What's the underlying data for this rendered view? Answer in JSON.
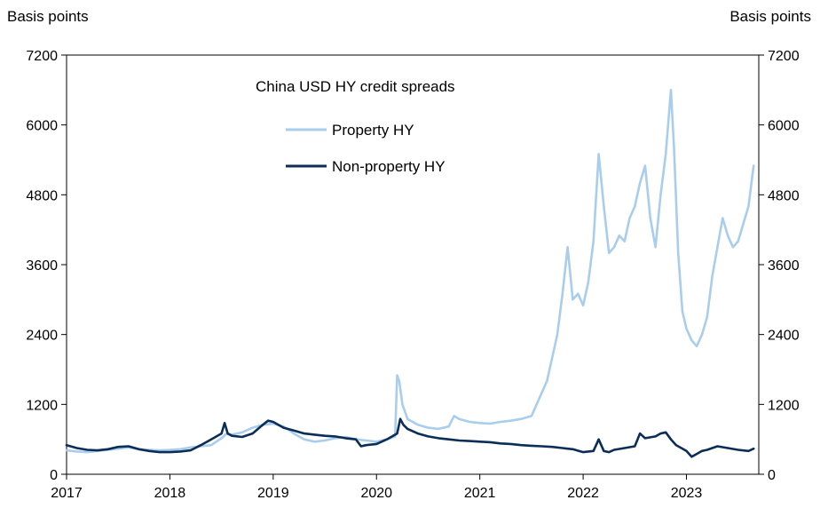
{
  "chart_data": {
    "type": "line",
    "title": "China USD HY credit spreads",
    "y_left_label": "Basis points",
    "y_right_label": "Basis points",
    "ylim": [
      0,
      7200
    ],
    "y_ticks": [
      0,
      1200,
      2400,
      3600,
      4800,
      6000,
      7200
    ],
    "y_tick_labels": [
      "0",
      "1200",
      "2400",
      "3600",
      "4800",
      "6000",
      "7200"
    ],
    "xlim": [
      2017.0,
      2023.7
    ],
    "x_ticks": [
      2017,
      2018,
      2019,
      2020,
      2021,
      2022,
      2023
    ],
    "x_tick_labels": [
      "2017",
      "2018",
      "2019",
      "2020",
      "2021",
      "2022",
      "2023"
    ],
    "grid": false,
    "legend_position": "top-center",
    "series": [
      {
        "name": "Property HY",
        "color": "#a9cdec",
        "x": [
          2017.0,
          2017.1,
          2017.2,
          2017.3,
          2017.4,
          2017.5,
          2017.6,
          2017.7,
          2017.8,
          2017.9,
          2018.0,
          2018.1,
          2018.2,
          2018.3,
          2018.4,
          2018.5,
          2018.55,
          2018.6,
          2018.7,
          2018.8,
          2018.9,
          2019.0,
          2019.1,
          2019.2,
          2019.3,
          2019.4,
          2019.5,
          2019.6,
          2019.7,
          2019.8,
          2019.9,
          2020.0,
          2020.1,
          2020.18,
          2020.2,
          2020.22,
          2020.25,
          2020.3,
          2020.4,
          2020.5,
          2020.6,
          2020.7,
          2020.75,
          2020.8,
          2020.9,
          2021.0,
          2021.1,
          2021.2,
          2021.3,
          2021.4,
          2021.5,
          2021.55,
          2021.6,
          2021.65,
          2021.7,
          2021.75,
          2021.8,
          2021.85,
          2021.9,
          2021.95,
          2022.0,
          2022.05,
          2022.1,
          2022.15,
          2022.2,
          2022.25,
          2022.3,
          2022.35,
          2022.4,
          2022.45,
          2022.5,
          2022.55,
          2022.6,
          2022.65,
          2022.7,
          2022.75,
          2022.8,
          2022.85,
          2022.88,
          2022.92,
          2022.96,
          2023.0,
          2023.05,
          2023.1,
          2023.15,
          2023.2,
          2023.25,
          2023.3,
          2023.35,
          2023.4,
          2023.45,
          2023.5,
          2023.55,
          2023.6,
          2023.65
        ],
        "values": [
          410,
          390,
          380,
          400,
          420,
          440,
          460,
          430,
          420,
          410,
          420,
          430,
          460,
          480,
          500,
          620,
          700,
          680,
          720,
          800,
          850,
          870,
          820,
          700,
          600,
          560,
          580,
          620,
          640,
          600,
          580,
          560,
          600,
          650,
          1700,
          1600,
          1200,
          950,
          850,
          800,
          780,
          820,
          1000,
          950,
          900,
          880,
          870,
          900,
          920,
          950,
          1000,
          1200,
          1400,
          1600,
          2000,
          2400,
          3100,
          3900,
          3000,
          3100,
          2900,
          3300,
          4000,
          5500,
          4600,
          3800,
          3900,
          4100,
          4000,
          4400,
          4600,
          5000,
          5300,
          4400,
          3900,
          4800,
          5500,
          6600,
          5600,
          3800,
          2800,
          2500,
          2300,
          2200,
          2400,
          2700,
          3400,
          3900,
          4400,
          4100,
          3900,
          4000,
          4300,
          4600,
          5300
        ]
      },
      {
        "name": "Non-property HY",
        "color": "#0b2d57",
        "x": [
          2017.0,
          2017.1,
          2017.2,
          2017.3,
          2017.4,
          2017.5,
          2017.6,
          2017.7,
          2017.8,
          2017.9,
          2018.0,
          2018.1,
          2018.2,
          2018.3,
          2018.4,
          2018.5,
          2018.53,
          2018.56,
          2018.6,
          2018.7,
          2018.8,
          2018.9,
          2018.95,
          2019.0,
          2019.1,
          2019.2,
          2019.3,
          2019.4,
          2019.5,
          2019.6,
          2019.7,
          2019.8,
          2019.85,
          2019.9,
          2020.0,
          2020.1,
          2020.2,
          2020.23,
          2020.26,
          2020.3,
          2020.4,
          2020.5,
          2020.6,
          2020.7,
          2020.8,
          2020.9,
          2021.0,
          2021.1,
          2021.2,
          2021.3,
          2021.4,
          2021.5,
          2021.6,
          2021.7,
          2021.8,
          2021.9,
          2022.0,
          2022.1,
          2022.15,
          2022.2,
          2022.25,
          2022.3,
          2022.4,
          2022.5,
          2022.55,
          2022.6,
          2022.7,
          2022.75,
          2022.8,
          2022.85,
          2022.9,
          2023.0,
          2023.05,
          2023.1,
          2023.15,
          2023.2,
          2023.3,
          2023.4,
          2023.5,
          2023.6,
          2023.65
        ],
        "values": [
          500,
          450,
          420,
          410,
          430,
          470,
          480,
          430,
          400,
          380,
          380,
          390,
          410,
          500,
          600,
          700,
          880,
          700,
          660,
          640,
          700,
          850,
          920,
          900,
          800,
          750,
          700,
          680,
          660,
          650,
          620,
          600,
          480,
          500,
          520,
          600,
          700,
          950,
          850,
          780,
          700,
          650,
          620,
          600,
          580,
          570,
          560,
          550,
          530,
          520,
          500,
          490,
          480,
          470,
          450,
          430,
          380,
          400,
          600,
          400,
          380,
          420,
          450,
          480,
          700,
          620,
          650,
          700,
          720,
          600,
          500,
          400,
          300,
          350,
          400,
          420,
          480,
          450,
          420,
          400,
          440
        ]
      }
    ]
  }
}
